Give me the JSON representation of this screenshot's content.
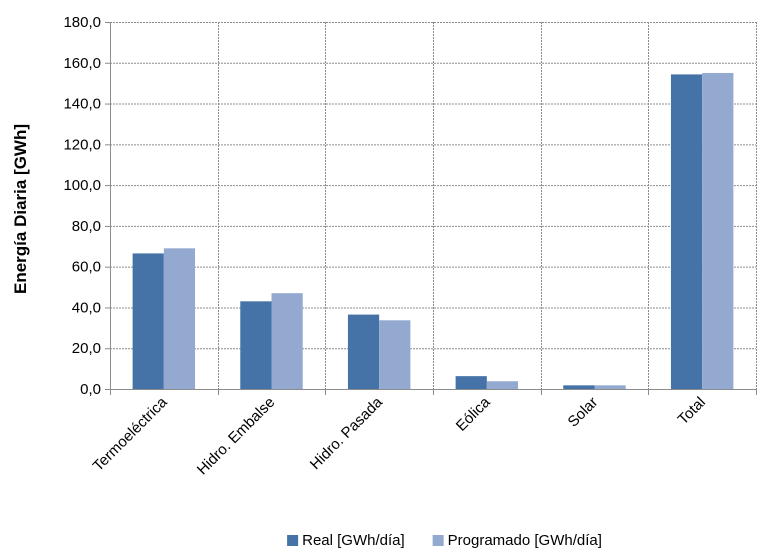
{
  "chart_data": {
    "type": "bar",
    "title": "",
    "xlabel": "",
    "ylabel": "Energía Diaria [GWh]",
    "categories": [
      "Termoeléctrica",
      "Hidro. Embalse",
      "Hidro. Pasada",
      "Eólica",
      "Solar",
      "Total"
    ],
    "series": [
      {
        "name": "Real [GWh/día]",
        "color": "#4572A7",
        "values": [
          66.5,
          43.0,
          36.5,
          6.3,
          1.8,
          154.3
        ]
      },
      {
        "name": "Programado [GWh/día]",
        "color": "#93A9CF",
        "values": [
          69.0,
          47.0,
          33.7,
          3.8,
          1.8,
          155.0
        ]
      }
    ],
    "ylim": [
      0,
      180
    ],
    "yticks": [
      0,
      20,
      40,
      60,
      80,
      100,
      120,
      140,
      160,
      180
    ],
    "ytick_labels": [
      "0,0",
      "20,0",
      "40,0",
      "60,0",
      "80,0",
      "100,0",
      "120,0",
      "140,0",
      "160,0",
      "180,0"
    ],
    "grid": true,
    "legend_position": "bottom"
  }
}
